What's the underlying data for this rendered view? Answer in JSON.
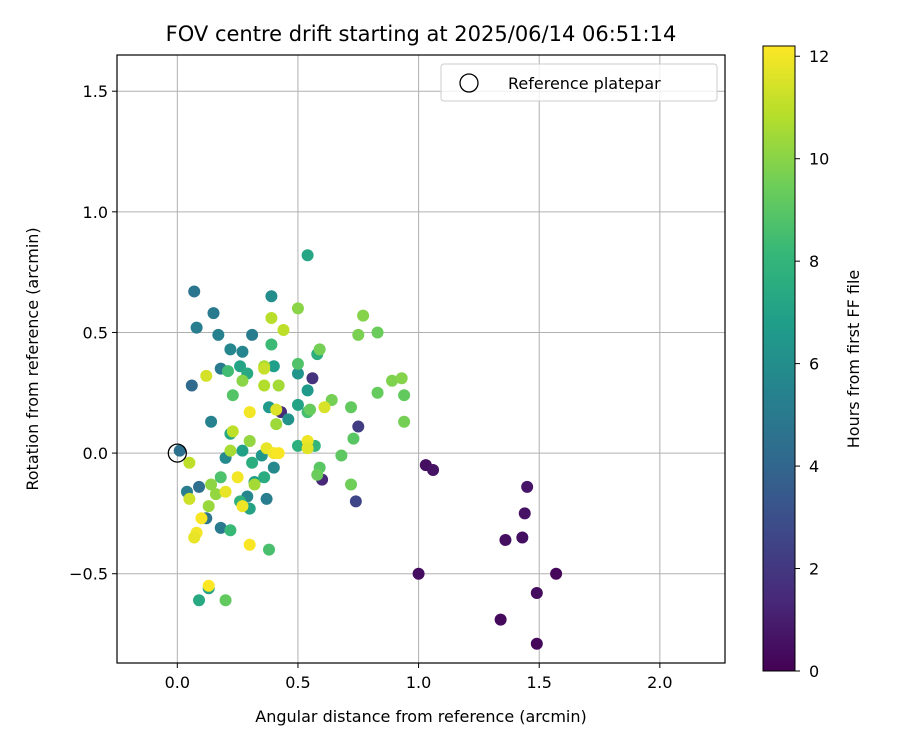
{
  "chart_data": {
    "type": "scatter",
    "title": "FOV centre drift starting at 2025/06/14 06:51:14",
    "xlabel": "Angular distance from reference (arcmin)",
    "ylabel": "Rotation from reference (arcmin)",
    "xlim": [
      -0.25,
      2.27
    ],
    "ylim": [
      -0.87,
      1.65
    ],
    "xticks": [
      0.0,
      0.5,
      1.0,
      1.5,
      2.0
    ],
    "xtick_labels": [
      "0.0",
      "0.5",
      "1.0",
      "1.5",
      "2.0"
    ],
    "yticks": [
      -0.5,
      0.0,
      0.5,
      1.0,
      1.5
    ],
    "ytick_labels": [
      "−0.5",
      "0.0",
      "0.5",
      "1.0",
      "1.5"
    ],
    "grid": true,
    "legend": {
      "placement": "top-right",
      "entries": [
        "Reference platepar"
      ]
    },
    "reference_point": {
      "x": 0.0,
      "y": 0.0,
      "label": "Reference platepar"
    },
    "colorbar": {
      "label": "Hours from first FF file",
      "min": 0,
      "max": 12.2,
      "ticks": [
        0,
        2,
        4,
        6,
        8,
        10,
        12
      ],
      "tick_labels": [
        "0",
        "2",
        "4",
        "6",
        "8",
        "10",
        "12"
      ],
      "colormap": "viridis"
    },
    "points": [
      {
        "x": 1.49,
        "y": -0.79,
        "h": 0.2
      },
      {
        "x": 1.34,
        "y": -0.69,
        "h": 0.3
      },
      {
        "x": 1.49,
        "y": -0.58,
        "h": 0.4
      },
      {
        "x": 1.57,
        "y": -0.5,
        "h": 0.2
      },
      {
        "x": 1.0,
        "y": -0.5,
        "h": 0.4
      },
      {
        "x": 1.36,
        "y": -0.36,
        "h": 0.5
      },
      {
        "x": 1.43,
        "y": -0.35,
        "h": 0.5
      },
      {
        "x": 1.44,
        "y": -0.25,
        "h": 0.6
      },
      {
        "x": 1.45,
        "y": -0.14,
        "h": 0.7
      },
      {
        "x": 1.03,
        "y": -0.05,
        "h": 0.5
      },
      {
        "x": 1.06,
        "y": -0.07,
        "h": 0.6
      },
      {
        "x": 0.6,
        "y": -0.11,
        "h": 1.4
      },
      {
        "x": 0.56,
        "y": 0.31,
        "h": 1.8
      },
      {
        "x": 0.75,
        "y": 0.11,
        "h": 2.2
      },
      {
        "x": 0.74,
        "y": -0.2,
        "h": 2.6
      },
      {
        "x": 0.43,
        "y": 0.17,
        "h": 1.6
      },
      {
        "x": 0.06,
        "y": 0.28,
        "h": 4.2
      },
      {
        "x": 0.01,
        "y": 0.01,
        "h": 4.5
      },
      {
        "x": 0.09,
        "y": -0.14,
        "h": 4.4
      },
      {
        "x": 0.04,
        "y": -0.16,
        "h": 5.2
      },
      {
        "x": 0.07,
        "y": 0.67,
        "h": 4.8
      },
      {
        "x": 0.15,
        "y": 0.58,
        "h": 5.0
      },
      {
        "x": 0.08,
        "y": 0.52,
        "h": 5.2
      },
      {
        "x": 0.17,
        "y": 0.49,
        "h": 5.3
      },
      {
        "x": 0.22,
        "y": 0.43,
        "h": 5.6
      },
      {
        "x": 0.18,
        "y": 0.35,
        "h": 5.0
      },
      {
        "x": 0.27,
        "y": 0.42,
        "h": 5.5
      },
      {
        "x": 0.31,
        "y": 0.49,
        "h": 5.1
      },
      {
        "x": 0.12,
        "y": -0.27,
        "h": 4.8
      },
      {
        "x": 0.18,
        "y": -0.31,
        "h": 5.0
      },
      {
        "x": 0.14,
        "y": 0.13,
        "h": 5.4
      },
      {
        "x": 0.2,
        "y": -0.02,
        "h": 5.8
      },
      {
        "x": 0.29,
        "y": -0.18,
        "h": 5.6
      },
      {
        "x": 0.37,
        "y": -0.19,
        "h": 5.2
      },
      {
        "x": 0.4,
        "y": -0.06,
        "h": 5.7
      },
      {
        "x": 0.39,
        "y": 0.65,
        "h": 6.0
      },
      {
        "x": 0.5,
        "y": 0.33,
        "h": 6.3
      },
      {
        "x": 0.54,
        "y": 0.26,
        "h": 6.6
      },
      {
        "x": 0.46,
        "y": 0.14,
        "h": 6.2
      },
      {
        "x": 0.38,
        "y": 0.19,
        "h": 6.5
      },
      {
        "x": 0.4,
        "y": 0.36,
        "h": 6.8
      },
      {
        "x": 0.35,
        "y": -0.01,
        "h": 6.4
      },
      {
        "x": 0.32,
        "y": -0.12,
        "h": 6.7
      },
      {
        "x": 0.3,
        "y": -0.23,
        "h": 7.0
      },
      {
        "x": 0.27,
        "y": 0.01,
        "h": 6.9
      },
      {
        "x": 0.54,
        "y": 0.82,
        "h": 7.2
      },
      {
        "x": 0.5,
        "y": 0.2,
        "h": 7.0
      },
      {
        "x": 0.58,
        "y": 0.41,
        "h": 7.6
      },
      {
        "x": 0.22,
        "y": 0.08,
        "h": 7.3
      },
      {
        "x": 0.26,
        "y": 0.36,
        "h": 7.1
      },
      {
        "x": 0.29,
        "y": 0.33,
        "h": 7.4
      },
      {
        "x": 0.36,
        "y": -0.1,
        "h": 7.5
      },
      {
        "x": 0.26,
        "y": -0.2,
        "h": 7.8
      },
      {
        "x": 0.31,
        "y": -0.04,
        "h": 7.6
      },
      {
        "x": 0.13,
        "y": -0.56,
        "h": 7.0
      },
      {
        "x": 0.09,
        "y": -0.61,
        "h": 7.4
      },
      {
        "x": 0.5,
        "y": 0.03,
        "h": 7.7
      },
      {
        "x": 0.57,
        "y": 0.03,
        "h": 8.0
      },
      {
        "x": 0.22,
        "y": -0.32,
        "h": 8.2
      },
      {
        "x": 0.38,
        "y": -0.4,
        "h": 8.6
      },
      {
        "x": 0.39,
        "y": 0.45,
        "h": 8.3
      },
      {
        "x": 0.5,
        "y": 0.37,
        "h": 8.8
      },
      {
        "x": 0.54,
        "y": 0.17,
        "h": 8.5
      },
      {
        "x": 0.21,
        "y": 0.34,
        "h": 8.4
      },
      {
        "x": 0.23,
        "y": 0.24,
        "h": 8.9
      },
      {
        "x": 0.18,
        "y": -0.1,
        "h": 8.7
      },
      {
        "x": 0.2,
        "y": -0.61,
        "h": 9.2
      },
      {
        "x": 0.59,
        "y": -0.06,
        "h": 9.0
      },
      {
        "x": 0.58,
        "y": -0.09,
        "h": 9.4
      },
      {
        "x": 0.55,
        "y": 0.18,
        "h": 9.3
      },
      {
        "x": 0.64,
        "y": 0.22,
        "h": 9.6
      },
      {
        "x": 0.68,
        "y": -0.01,
        "h": 9.1
      },
      {
        "x": 0.72,
        "y": -0.13,
        "h": 9.5
      },
      {
        "x": 0.72,
        "y": 0.19,
        "h": 9.2
      },
      {
        "x": 0.73,
        "y": 0.06,
        "h": 9.0
      },
      {
        "x": 0.75,
        "y": 0.49,
        "h": 9.7
      },
      {
        "x": 0.77,
        "y": 0.57,
        "h": 9.9
      },
      {
        "x": 0.83,
        "y": 0.5,
        "h": 9.4
      },
      {
        "x": 0.83,
        "y": 0.25,
        "h": 9.3
      },
      {
        "x": 0.89,
        "y": 0.3,
        "h": 9.8
      },
      {
        "x": 0.93,
        "y": 0.31,
        "h": 9.9
      },
      {
        "x": 0.94,
        "y": 0.24,
        "h": 9.2
      },
      {
        "x": 0.94,
        "y": 0.13,
        "h": 9.6
      },
      {
        "x": 0.59,
        "y": 0.43,
        "h": 9.6
      },
      {
        "x": 0.5,
        "y": 0.6,
        "h": 10.0
      },
      {
        "x": 0.27,
        "y": 0.3,
        "h": 10.0
      },
      {
        "x": 0.16,
        "y": -0.17,
        "h": 10.2
      },
      {
        "x": 0.14,
        "y": -0.13,
        "h": 10.1
      },
      {
        "x": 0.13,
        "y": -0.22,
        "h": 10.3
      },
      {
        "x": 0.42,
        "y": 0.28,
        "h": 10.5
      },
      {
        "x": 0.36,
        "y": 0.36,
        "h": 10.6
      },
      {
        "x": 0.41,
        "y": 0.12,
        "h": 10.4
      },
      {
        "x": 0.3,
        "y": 0.05,
        "h": 10.2
      },
      {
        "x": 0.32,
        "y": -0.13,
        "h": 10.5
      },
      {
        "x": 0.22,
        "y": 0.01,
        "h": 10.6
      },
      {
        "x": 0.36,
        "y": 0.28,
        "h": 10.8
      },
      {
        "x": 0.39,
        "y": 0.56,
        "h": 10.9
      },
      {
        "x": 0.44,
        "y": 0.51,
        "h": 11.0
      },
      {
        "x": 0.23,
        "y": 0.09,
        "h": 11.0
      },
      {
        "x": 0.05,
        "y": -0.04,
        "h": 11.0
      },
      {
        "x": 0.05,
        "y": -0.19,
        "h": 11.3
      },
      {
        "x": 0.12,
        "y": 0.32,
        "h": 11.4
      },
      {
        "x": 0.36,
        "y": 0.35,
        "h": 11.2
      },
      {
        "x": 0.41,
        "y": 0.18,
        "h": 11.6
      },
      {
        "x": 0.37,
        "y": 0.02,
        "h": 11.8
      },
      {
        "x": 0.61,
        "y": 0.19,
        "h": 11.5
      },
      {
        "x": 0.54,
        "y": 0.05,
        "h": 11.9
      },
      {
        "x": 0.54,
        "y": 0.02,
        "h": 11.7
      },
      {
        "x": 0.3,
        "y": 0.17,
        "h": 12.0
      },
      {
        "x": 0.25,
        "y": -0.1,
        "h": 12.0
      },
      {
        "x": 0.2,
        "y": -0.16,
        "h": 11.8
      },
      {
        "x": 0.27,
        "y": -0.22,
        "h": 11.9
      },
      {
        "x": 0.3,
        "y": -0.38,
        "h": 12.1
      },
      {
        "x": 0.08,
        "y": -0.33,
        "h": 12.0
      },
      {
        "x": 0.07,
        "y": -0.35,
        "h": 11.8
      },
      {
        "x": 0.1,
        "y": -0.27,
        "h": 12.1
      },
      {
        "x": 0.13,
        "y": -0.55,
        "h": 12.2
      },
      {
        "x": 0.4,
        "y": 0.0,
        "h": 12.0
      },
      {
        "x": 0.42,
        "y": 0.0,
        "h": 12.1
      }
    ]
  }
}
